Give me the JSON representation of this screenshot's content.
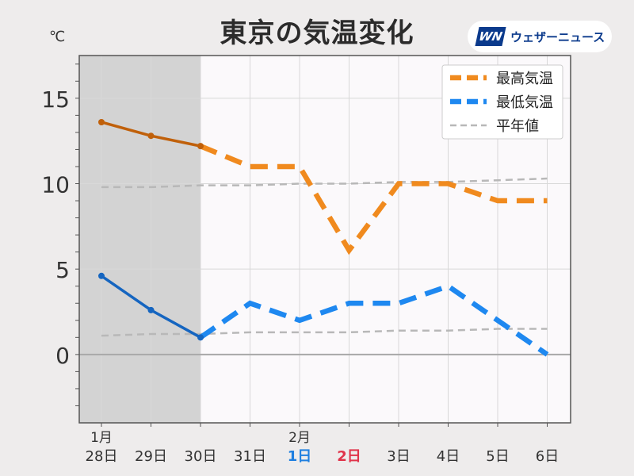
{
  "title": "東京の気温変化",
  "unit_label": "℃",
  "logo": {
    "mark": "WN",
    "text": "ウェザーニュース",
    "color": "#0b3a8c"
  },
  "chart_data": {
    "type": "line",
    "categories": [
      "28日",
      "29日",
      "30日",
      "31日",
      "1日",
      "2日",
      "3日",
      "4日",
      "5日",
      "6日"
    ],
    "month_labels": [
      {
        "index": 0,
        "label": "1月"
      },
      {
        "index": 4,
        "label": "2月"
      }
    ],
    "category_colors": [
      "#333333",
      "#333333",
      "#333333",
      "#333333",
      "#1f7fe0",
      "#e0334a",
      "#333333",
      "#333333",
      "#333333",
      "#333333"
    ],
    "observed_through_index": 2,
    "ylim": [
      -4,
      17.5
    ],
    "yticks": [
      0,
      5,
      10,
      15
    ],
    "grid": true,
    "legend_position": "top-right",
    "series": [
      {
        "name": "最高気温",
        "values": [
          13.6,
          12.8,
          12.2,
          11.0,
          11.0,
          6.1,
          10.0,
          10.0,
          9.0,
          9.0
        ],
        "observed_color": "#c0600a",
        "forecast_color": "#f08a1e"
      },
      {
        "name": "最低気温",
        "values": [
          4.6,
          2.6,
          1.0,
          3.0,
          2.0,
          3.0,
          3.0,
          4.0,
          2.0,
          0.0
        ],
        "observed_color": "#1565c0",
        "forecast_color": "#1e88f0"
      },
      {
        "name": "平年値",
        "values": [
          9.8,
          9.8,
          9.9,
          9.9,
          10.0,
          10.0,
          10.1,
          10.1,
          10.2,
          10.3
        ],
        "color": "#b8b8b8"
      },
      {
        "name": "",
        "values": [
          1.1,
          1.2,
          1.2,
          1.3,
          1.3,
          1.3,
          1.4,
          1.4,
          1.5,
          1.5
        ],
        "color": "#b8b8b8"
      }
    ]
  }
}
